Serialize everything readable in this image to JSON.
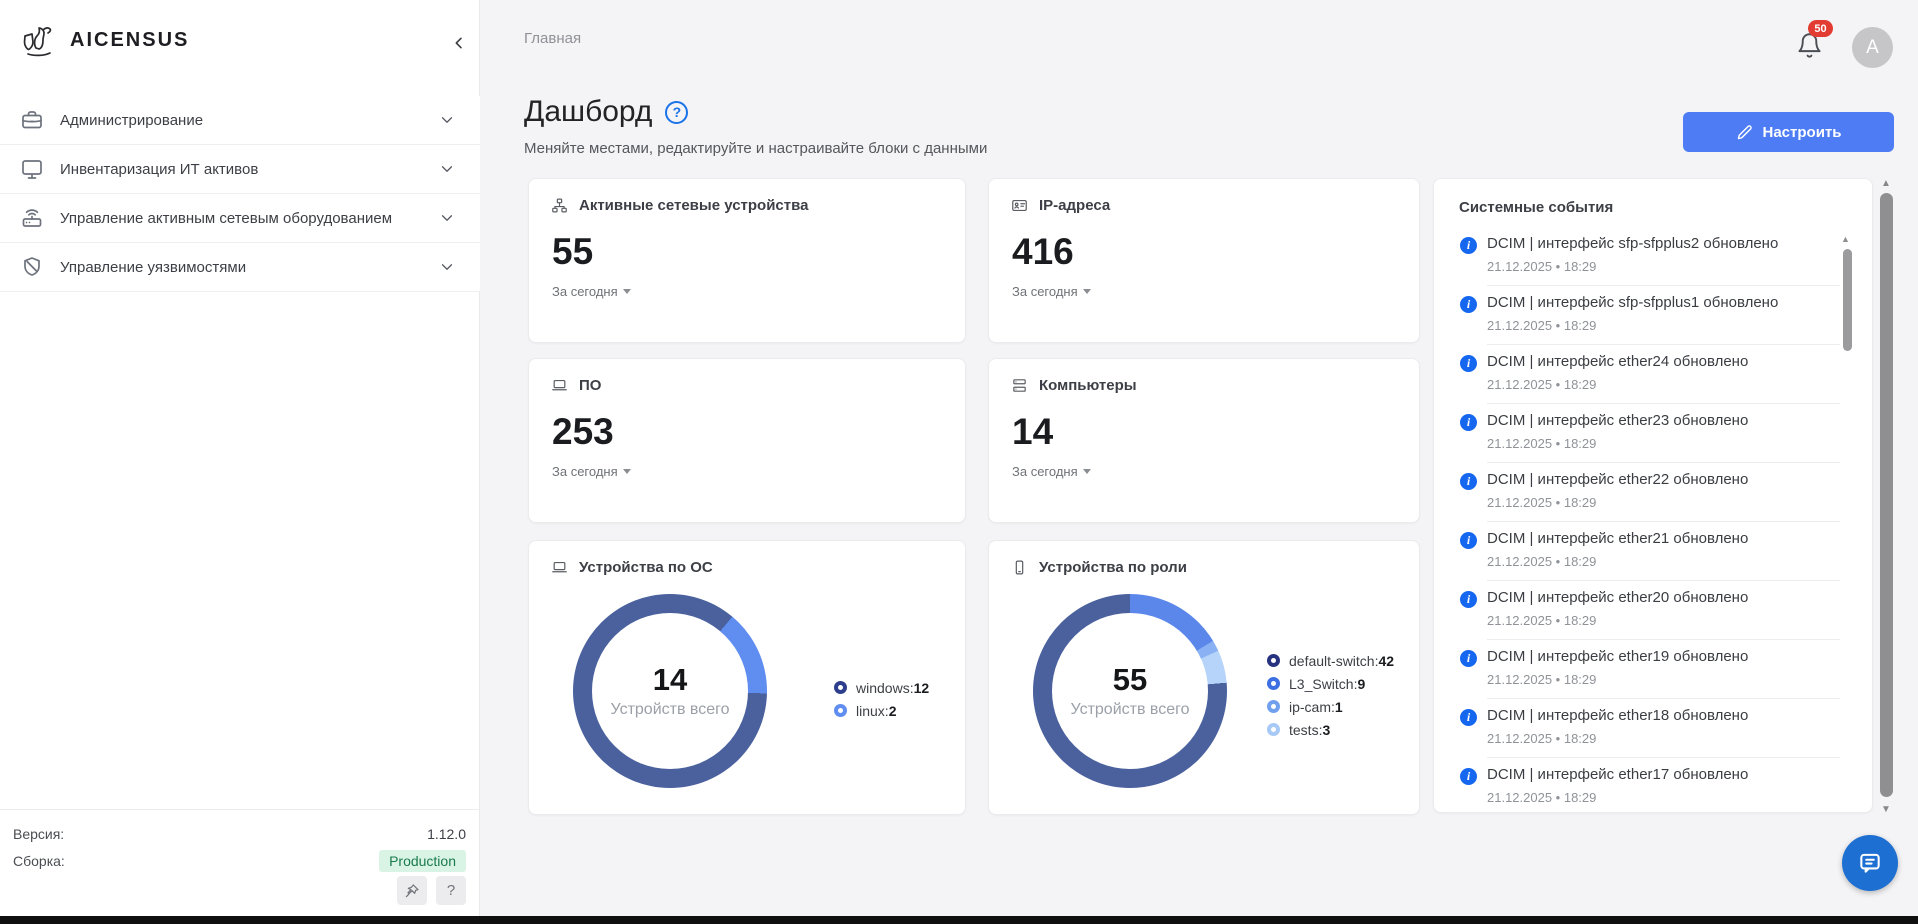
{
  "sidebar": {
    "brand": "AICENSUS",
    "menu": [
      {
        "label": "Администрирование",
        "icon": "briefcase-icon"
      },
      {
        "label": "Инвентаризация ИТ активов",
        "icon": "monitor-icon"
      },
      {
        "label": "Управление активным сетевым оборудованием",
        "icon": "router-icon"
      },
      {
        "label": "Управление уязвимостями",
        "icon": "shield-icon"
      }
    ],
    "footer": {
      "version_label": "Версия:",
      "version_value": "1.12.0",
      "build_label": "Сборка:",
      "build_value": "Production",
      "build_badge_bg": "#d9f4e4",
      "build_badge_color": "#1b7a4e"
    }
  },
  "topbar": {
    "breadcrumb": "Главная",
    "notification_count": "50",
    "avatar_initial": "A"
  },
  "header": {
    "title": "Дашборд",
    "subtitle": "Меняйте местами, редактируйте и настраивайте блоки с данными",
    "configure_button": "Настроить",
    "accent_color": "#4d7cf5"
  },
  "stat_cards": [
    {
      "title": "Активные сетевые устройства",
      "value": "55",
      "period": "За сегодня",
      "icon": "sitemap-icon"
    },
    {
      "title": "IP-адреса",
      "value": "416",
      "period": "За сегодня",
      "icon": "id-card-icon"
    },
    {
      "title": "ПО",
      "value": "253",
      "period": "За сегодня",
      "icon": "laptop-icon"
    },
    {
      "title": "Компьютеры",
      "value": "14",
      "period": "За сегодня",
      "icon": "computers-icon"
    }
  ],
  "chart_data": [
    {
      "type": "pie",
      "title": "Устройства по ОС",
      "icon": "laptop-icon",
      "center_value": "14",
      "center_label": "Устройств всего",
      "start_angle": 91.43,
      "series": [
        {
          "name": "windows",
          "value": 12,
          "ring_color": "#4a619e",
          "dot_color": "#2d3e8d"
        },
        {
          "name": "linux",
          "value": 2,
          "ring_color": "#5f8df0",
          "dot_color": "#5f8df0"
        }
      ]
    },
    {
      "type": "pie",
      "title": "Устройства по роли",
      "icon": "smartphone-icon",
      "center_value": "55",
      "center_label": "Устройств всего",
      "start_angle": 85.09,
      "series": [
        {
          "name": "default-switch",
          "value": 42,
          "ring_color": "#4a619e",
          "dot_color": "#27337e"
        },
        {
          "name": "L3_Switch",
          "value": 9,
          "ring_color": "#5c87ea",
          "dot_color": "#3e6fe2"
        },
        {
          "name": "ip-cam",
          "value": 1,
          "ring_color": "#8ab1f3",
          "dot_color": "#71a1ee"
        },
        {
          "name": "tests",
          "value": 3,
          "ring_color": "#b6d3f9",
          "dot_color": "#a6c9f6"
        }
      ]
    }
  ],
  "events_panel": {
    "title": "Системные события",
    "events": [
      {
        "text": "DCIM | интерфейс sfp-sfpplus2 обновлено",
        "time": "21.12.2025 • 18:29"
      },
      {
        "text": "DCIM | интерфейс sfp-sfpplus1 обновлено",
        "time": "21.12.2025 • 18:29"
      },
      {
        "text": "DCIM | интерфейс ether24 обновлено",
        "time": "21.12.2025 • 18:29"
      },
      {
        "text": "DCIM | интерфейс ether23 обновлено",
        "time": "21.12.2025 • 18:29"
      },
      {
        "text": "DCIM | интерфейс ether22 обновлено",
        "time": "21.12.2025 • 18:29"
      },
      {
        "text": "DCIM | интерфейс ether21 обновлено",
        "time": "21.12.2025 • 18:29"
      },
      {
        "text": "DCIM | интерфейс ether20 обновлено",
        "time": "21.12.2025 • 18:29"
      },
      {
        "text": "DCIM | интерфейс ether19 обновлено",
        "time": "21.12.2025 • 18:29"
      },
      {
        "text": "DCIM | интерфейс ether18 обновлено",
        "time": "21.12.2025 • 18:29"
      },
      {
        "text": "DCIM | интерфейс ether17 обновлено",
        "time": "21.12.2025 • 18:29"
      }
    ]
  }
}
